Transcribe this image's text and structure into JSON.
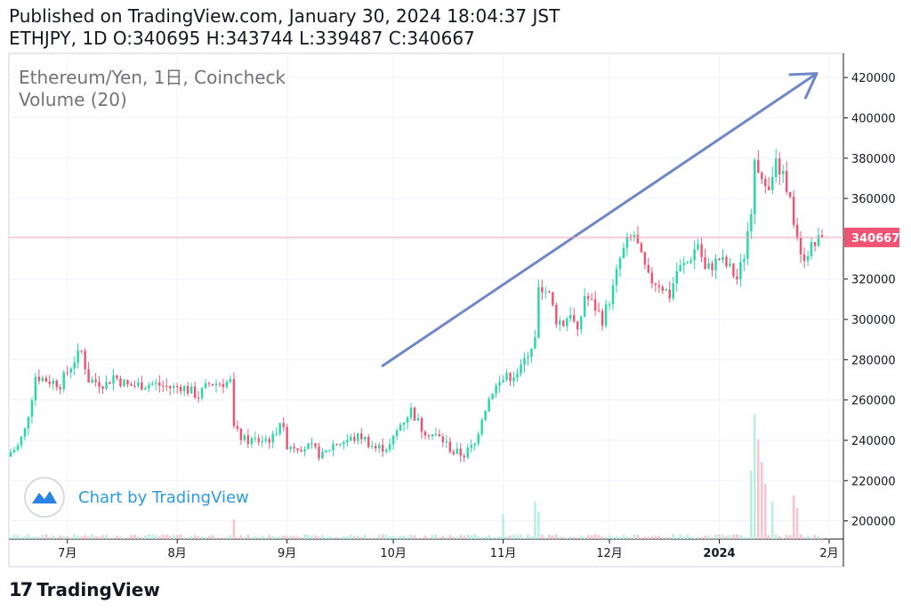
{
  "header": {
    "published": "Published on TradingView.com, January 30, 2024 18:04:37 JST",
    "ohlc": "ETHJPY, 1D O:340695 H:343744 L:339487 C:340667"
  },
  "legend": {
    "title": "Ethereum/Yen, 1日, Coincheck",
    "volume": "Volume (20)"
  },
  "badge": {
    "text": "Chart by TradingView"
  },
  "footer": {
    "brand": "TradingView"
  },
  "colors": {
    "up": "#26d9a8",
    "down": "#ef5573",
    "arrow": "#6f86c7",
    "price_line": "#f7a6b4",
    "price_label_bg": "#ef5573"
  },
  "chart_data": {
    "type": "candlestick",
    "symbol": "ETHJPY",
    "exchange": "Coincheck",
    "interval": "1D",
    "last_price": 340667,
    "last_price_label": "340667",
    "ylim": [
      191000,
      432000
    ],
    "yticks": [
      {
        "value": 200000,
        "label": "200000"
      },
      {
        "value": 220000,
        "label": "220000"
      },
      {
        "value": 240000,
        "label": "240000"
      },
      {
        "value": 260000,
        "label": "260000"
      },
      {
        "value": 280000,
        "label": "280000"
      },
      {
        "value": 300000,
        "label": "300000"
      },
      {
        "value": 320000,
        "label": "320000"
      },
      {
        "value": 340000,
        "label": "340000"
      },
      {
        "value": 360000,
        "label": "360000"
      },
      {
        "value": 380000,
        "label": "380000"
      },
      {
        "value": 400000,
        "label": "400000"
      },
      {
        "value": 420000,
        "label": "420000"
      }
    ],
    "xticks": [
      {
        "date": "2023-07-01",
        "label": "7月",
        "bold": false
      },
      {
        "date": "2023-08-01",
        "label": "8月",
        "bold": false
      },
      {
        "date": "2023-09-01",
        "label": "9月",
        "bold": false
      },
      {
        "date": "2023-10-01",
        "label": "10月",
        "bold": false
      },
      {
        "date": "2023-11-01",
        "label": "11月",
        "bold": false
      },
      {
        "date": "2023-12-01",
        "label": "12月",
        "bold": false
      },
      {
        "date": "2024-01-01",
        "label": "2024",
        "bold": true
      },
      {
        "date": "2024-02-01",
        "label": "2月",
        "bold": false
      }
    ],
    "start_date": "2023-06-15",
    "end_date": "2024-01-30",
    "close_anchors": [
      [
        "2023-06-15",
        234000
      ],
      [
        "2023-06-17",
        237000
      ],
      [
        "2023-06-19",
        245000
      ],
      [
        "2023-06-21",
        262000
      ],
      [
        "2023-06-22",
        272000
      ],
      [
        "2023-06-25",
        270000
      ],
      [
        "2023-06-29",
        268000
      ],
      [
        "2023-07-03",
        280000
      ],
      [
        "2023-07-05",
        284000
      ],
      [
        "2023-07-07",
        270000
      ],
      [
        "2023-07-12",
        268000
      ],
      [
        "2023-07-14",
        272000
      ],
      [
        "2023-07-18",
        267000
      ],
      [
        "2023-07-25",
        268000
      ],
      [
        "2023-07-31",
        266000
      ],
      [
        "2023-08-02",
        267000
      ],
      [
        "2023-08-07",
        262000
      ],
      [
        "2023-08-10",
        268000
      ],
      [
        "2023-08-16",
        269000
      ],
      [
        "2023-08-17",
        245000
      ],
      [
        "2023-08-20",
        240000
      ],
      [
        "2023-08-24",
        240000
      ],
      [
        "2023-08-28",
        241000
      ],
      [
        "2023-08-30",
        250000
      ],
      [
        "2023-09-01",
        238000
      ],
      [
        "2023-09-05",
        237000
      ],
      [
        "2023-09-08",
        236000
      ],
      [
        "2023-09-11",
        232000
      ],
      [
        "2023-09-14",
        238000
      ],
      [
        "2023-09-18",
        240000
      ],
      [
        "2023-09-22",
        242000
      ],
      [
        "2023-09-26",
        236000
      ],
      [
        "2023-09-30",
        237000
      ],
      [
        "2023-10-03",
        248000
      ],
      [
        "2023-10-06",
        255000
      ],
      [
        "2023-10-09",
        246000
      ],
      [
        "2023-10-12",
        243000
      ],
      [
        "2023-10-15",
        240000
      ],
      [
        "2023-10-18",
        234000
      ],
      [
        "2023-10-21",
        233000
      ],
      [
        "2023-10-24",
        238000
      ],
      [
        "2023-10-26",
        252000
      ],
      [
        "2023-10-29",
        265000
      ],
      [
        "2023-11-01",
        270000
      ],
      [
        "2023-11-03",
        272000
      ],
      [
        "2023-11-06",
        275000
      ],
      [
        "2023-11-08",
        284000
      ],
      [
        "2023-11-10",
        290000
      ],
      [
        "2023-11-11",
        318000
      ],
      [
        "2023-11-14",
        312000
      ],
      [
        "2023-11-16",
        300000
      ],
      [
        "2023-11-18",
        298000
      ],
      [
        "2023-11-20",
        304000
      ],
      [
        "2023-11-22",
        292000
      ],
      [
        "2023-11-24",
        312000
      ],
      [
        "2023-11-27",
        306000
      ],
      [
        "2023-11-29",
        300000
      ],
      [
        "2023-12-02",
        315000
      ],
      [
        "2023-12-04",
        330000
      ],
      [
        "2023-12-06",
        338000
      ],
      [
        "2023-12-08",
        342000
      ],
      [
        "2023-12-10",
        330000
      ],
      [
        "2023-12-12",
        320000
      ],
      [
        "2023-12-15",
        318000
      ],
      [
        "2023-12-18",
        312000
      ],
      [
        "2023-12-20",
        324000
      ],
      [
        "2023-12-23",
        328000
      ],
      [
        "2023-12-26",
        338000
      ],
      [
        "2023-12-28",
        324000
      ],
      [
        "2024-01-01",
        330000
      ],
      [
        "2024-01-04",
        325000
      ],
      [
        "2024-01-06",
        320000
      ],
      [
        "2024-01-08",
        332000
      ],
      [
        "2024-01-10",
        356000
      ],
      [
        "2024-01-11",
        378000
      ],
      [
        "2024-01-13",
        372000
      ],
      [
        "2024-01-15",
        368000
      ],
      [
        "2024-01-17",
        378000
      ],
      [
        "2024-01-19",
        370000
      ],
      [
        "2024-01-21",
        364000
      ],
      [
        "2024-01-22",
        345000
      ],
      [
        "2024-01-24",
        330000
      ],
      [
        "2024-01-26",
        334000
      ],
      [
        "2024-01-28",
        337000
      ],
      [
        "2024-01-30",
        340667
      ]
    ],
    "volume_spikes": [
      [
        "2023-08-17",
        0.16
      ],
      [
        "2023-11-01",
        0.2
      ],
      [
        "2023-11-10",
        0.3
      ],
      [
        "2023-11-11",
        0.22
      ],
      [
        "2024-01-10",
        0.55
      ],
      [
        "2024-01-11",
        1.0
      ],
      [
        "2024-01-12",
        0.8
      ],
      [
        "2024-01-13",
        0.62
      ],
      [
        "2024-01-14",
        0.44
      ],
      [
        "2024-01-16",
        0.3
      ],
      [
        "2024-01-22",
        0.35
      ],
      [
        "2024-01-23",
        0.25
      ]
    ],
    "annotation": {
      "type": "arrow",
      "from": {
        "date": "2023-09-28",
        "price": 277000
      },
      "to": {
        "date": "2024-01-30",
        "price": 422000
      }
    },
    "grid": true
  }
}
